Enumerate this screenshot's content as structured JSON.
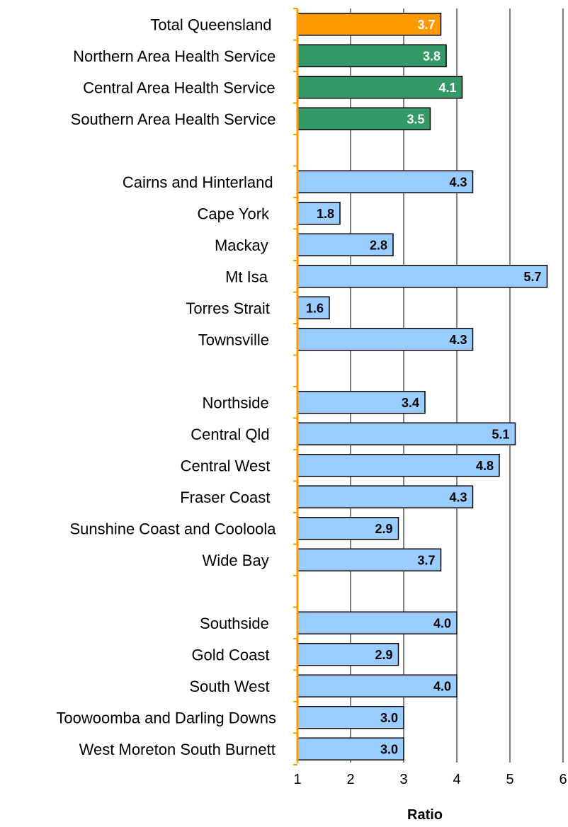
{
  "chart_data": {
    "type": "bar",
    "orientation": "horizontal",
    "xlabel": "Ratio",
    "ylabel": "",
    "title": "",
    "xlim": [
      1,
      6
    ],
    "xticks": [
      1,
      2,
      3,
      4,
      5,
      6
    ],
    "grid": true,
    "colors": {
      "total": "#ff9900",
      "area": "#339966",
      "district": "#99ccff",
      "axis": "#ff9900",
      "gridline": "#000000"
    },
    "groups": [
      [
        {
          "label": "Total Queensland",
          "value": 3.7,
          "value_label": "3.7",
          "kind": "total"
        },
        {
          "label": "Northern Area Health Service",
          "value": 3.8,
          "value_label": "3.8",
          "kind": "area"
        },
        {
          "label": "Central Area Health Service",
          "value": 4.1,
          "value_label": "4.1",
          "kind": "area"
        },
        {
          "label": "Southern Area Health Service",
          "value": 3.5,
          "value_label": "3.5",
          "kind": "area"
        }
      ],
      [
        {
          "label": "Cairns and Hinterland",
          "value": 4.3,
          "value_label": "4.3",
          "kind": "district"
        },
        {
          "label": "Cape York",
          "value": 1.8,
          "value_label": "1.8",
          "kind": "district"
        },
        {
          "label": "Mackay",
          "value": 2.8,
          "value_label": "2.8",
          "kind": "district"
        },
        {
          "label": "Mt Isa",
          "value": 5.7,
          "value_label": "5.7",
          "kind": "district"
        },
        {
          "label": "Torres Strait",
          "value": 1.6,
          "value_label": "1.6",
          "kind": "district"
        },
        {
          "label": "Townsville",
          "value": 4.3,
          "value_label": "4.3",
          "kind": "district"
        }
      ],
      [
        {
          "label": "Northside",
          "value": 3.4,
          "value_label": "3.4",
          "kind": "district"
        },
        {
          "label": "Central Qld",
          "value": 5.1,
          "value_label": "5.1",
          "kind": "district"
        },
        {
          "label": "Central West",
          "value": 4.8,
          "value_label": "4.8",
          "kind": "district"
        },
        {
          "label": "Fraser Coast",
          "value": 4.3,
          "value_label": "4.3",
          "kind": "district"
        },
        {
          "label": "Sunshine Coast and Cooloola",
          "value": 2.9,
          "value_label": "2.9",
          "kind": "district"
        },
        {
          "label": "Wide Bay",
          "value": 3.7,
          "value_label": "3.7",
          "kind": "district"
        }
      ],
      [
        {
          "label": "Southside",
          "value": 4.0,
          "value_label": "4.0",
          "kind": "district"
        },
        {
          "label": "Gold Coast",
          "value": 2.9,
          "value_label": "2.9",
          "kind": "district"
        },
        {
          "label": "South West",
          "value": 4.0,
          "value_label": "4.0",
          "kind": "district"
        },
        {
          "label": "Toowoomba and Darling Downs",
          "value": 3.0,
          "value_label": "3.0",
          "kind": "district"
        },
        {
          "label": "West Moreton South Burnett",
          "value": 3.0,
          "value_label": "3.0",
          "kind": "district"
        }
      ]
    ]
  }
}
